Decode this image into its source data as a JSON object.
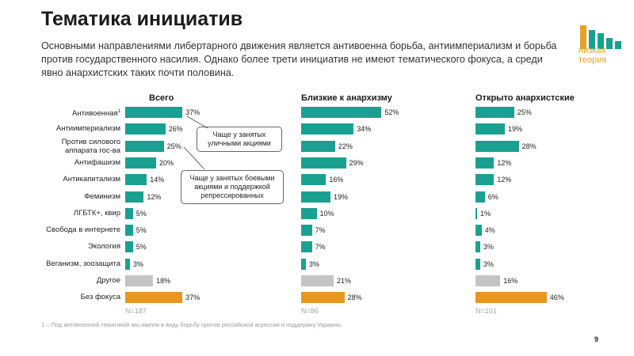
{
  "title": "Тематика инициатив",
  "subtitle": "Основными направлениями либертарного движения является антивоенна борьба, антиимпериализм и борьба против государственного  насилия. Однако более трети инициатив не имеют тематического фокуса, а среди явно анархистских таких почти половина.",
  "logo": {
    "text_line1": "низкая",
    "text_line2": "теория",
    "color": "#e8a028"
  },
  "chart_data": {
    "type": "bar",
    "orientation": "horizontal",
    "categories": [
      "Антивоенная",
      "Антиимпериализм",
      "Против силового аппарата гос-ва",
      "Антифашизм",
      "Антикапитализм",
      "Феминизм",
      "ЛГБТК+, квир",
      "Свобода в интернете",
      "Экология",
      "Веганизм, зоозащита",
      "Другое",
      "Без фокуса"
    ],
    "category_labels_display": [
      [
        "Антивоенная",
        "1"
      ],
      [
        "Антиимпериализм"
      ],
      [
        "Против силового",
        "аппарата гос-ва"
      ],
      [
        "Антифашизм"
      ],
      [
        "Антикапитализм"
      ],
      [
        "Феминизм"
      ],
      [
        "ЛГБТК+, квир"
      ],
      [
        "Свобода в интернете"
      ],
      [
        "Экология"
      ],
      [
        "Веганизм, зоозащита"
      ],
      [
        "Другое"
      ],
      [
        "Без фокуса"
      ]
    ],
    "category_colors": [
      "#1aa090",
      "#1aa090",
      "#1aa090",
      "#1aa090",
      "#1aa090",
      "#1aa090",
      "#1aa090",
      "#1aa090",
      "#1aa090",
      "#1aa090",
      "#c4c4c4",
      "#e8961e"
    ],
    "series": [
      {
        "name": "Всего",
        "n_label": "N=187",
        "values": [
          37,
          26,
          25,
          20,
          14,
          12,
          5,
          5,
          5,
          3,
          18,
          37
        ]
      },
      {
        "name": "Близкие к анархизму",
        "n_label": "N=86",
        "values": [
          52,
          34,
          22,
          29,
          16,
          19,
          10,
          7,
          7,
          3,
          21,
          28
        ]
      },
      {
        "name": "Открыто анархистские",
        "n_label": "N=101",
        "values": [
          25,
          19,
          28,
          12,
          12,
          6,
          1,
          4,
          3,
          3,
          16,
          46
        ]
      }
    ],
    "value_suffix": "%",
    "xlim": [
      0,
      52
    ],
    "grid": false,
    "legend": "none",
    "annotations": [
      {
        "text": "Чаще у занятых уличными акциями",
        "lines": [
          "Чаще у занятых",
          "уличными акциями"
        ]
      },
      {
        "text": "Чаще у занятых боевыми акциями и поддержкой репрессированных",
        "lines": [
          "Чаще у занятых боевыми",
          "акциями и поддержкой",
          "репрессированных"
        ]
      }
    ]
  },
  "footnote": "1 – Под антивоенной тематикой мы имеем в виду борьбу против российской агрессии и поддержку Украины.",
  "page_number": "9"
}
